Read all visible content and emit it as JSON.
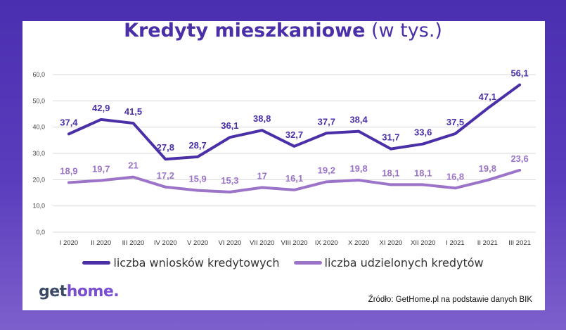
{
  "title": {
    "main": "Kredyty mieszkaniowe",
    "unit": "(w tys.)"
  },
  "logo": {
    "part1": "get",
    "part2": "home."
  },
  "source": "Źródło: GetHome.pl na podstawie danych BIK",
  "legend": [
    {
      "label": "liczba wniosków kredytowych",
      "color": "#4a2fa8"
    },
    {
      "label": "liczba udzielonych kredytów",
      "color": "#9b74c9"
    }
  ],
  "chart_data": {
    "type": "line",
    "categories": [
      "I 2020",
      "II 2020",
      "III 2020",
      "IV 2020",
      "V 2020",
      "VI 2020",
      "VII 2020",
      "VIII 2020",
      "IX 2020",
      "X 2020",
      "XI 2020",
      "XII 2020",
      "I 2021",
      "II 2021",
      "III 2021"
    ],
    "series": [
      {
        "name": "liczba wniosków kredytowych",
        "color": "#4a2fa8",
        "values": [
          37.4,
          42.9,
          41.5,
          27.8,
          28.7,
          36.1,
          38.8,
          32.7,
          37.7,
          38.4,
          31.7,
          33.6,
          37.5,
          47.1,
          56.1
        ],
        "labels": [
          "37,4",
          "42,9",
          "41,5",
          "27,8",
          "28,7",
          "36,1",
          "38,8",
          "32,7",
          "37,7",
          "38,4",
          "31,7",
          "33,6",
          "37,5",
          "47,1",
          "56,1"
        ]
      },
      {
        "name": "liczba udzielonych kredytów",
        "color": "#9b74c9",
        "values": [
          18.9,
          19.7,
          21,
          17.2,
          15.9,
          15.3,
          17,
          16.1,
          19.2,
          19.8,
          18.1,
          18.1,
          16.8,
          19.8,
          23.6
        ],
        "labels": [
          "18,9",
          "19,7",
          "21",
          "17,2",
          "15,9",
          "15,3",
          "17",
          "16,1",
          "19,2",
          "19,8",
          "18,1",
          "18,1",
          "16,8",
          "19,8",
          "23,6"
        ]
      }
    ],
    "yticks": [
      "0,0",
      "10,0",
      "20,0",
      "30,0",
      "40,0",
      "50,0",
      "60,0"
    ],
    "ylim": [
      0,
      60
    ],
    "grid": true,
    "legend_position": "bottom"
  }
}
